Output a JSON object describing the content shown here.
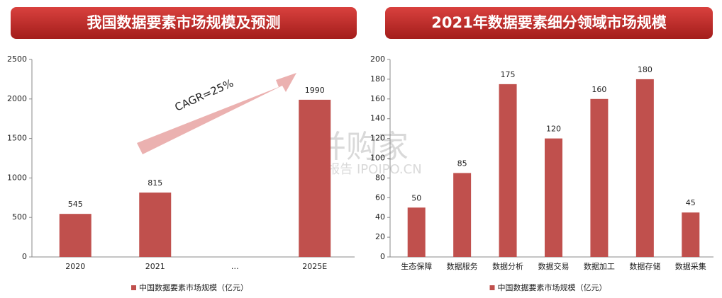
{
  "chart_data": [
    {
      "type": "bar",
      "title": "我国数据要素市场规模及预测",
      "categories": [
        "2020",
        "2021",
        "…",
        "2025E"
      ],
      "series": [
        {
          "name": "中国数据要素市场规模（亿元）",
          "color": "#c0504d",
          "values": [
            545,
            815,
            null,
            1990
          ]
        }
      ],
      "ylim": [
        0,
        2500
      ],
      "yticks": [
        0,
        500,
        1000,
        1500,
        2000,
        2500
      ],
      "annotation": "CAGR=25%"
    },
    {
      "type": "bar",
      "title": "2021年数据要素细分领域市场规模",
      "categories": [
        "生态保障",
        "数据服务",
        "数据分析",
        "数据交易",
        "数据加工",
        "数据存储",
        "数据采集"
      ],
      "series": [
        {
          "name": "中国数据要素市场规模（亿元）",
          "color": "#c0504d",
          "values": [
            50,
            85,
            175,
            120,
            160,
            180,
            45
          ]
        }
      ],
      "ylim": [
        0,
        200
      ],
      "yticks": [
        0,
        20,
        40,
        60,
        80,
        100,
        120,
        140,
        160,
        180,
        200
      ]
    }
  ],
  "watermark": {
    "logo": "并购家",
    "text": "行业报告 IPOIPO.CN"
  }
}
